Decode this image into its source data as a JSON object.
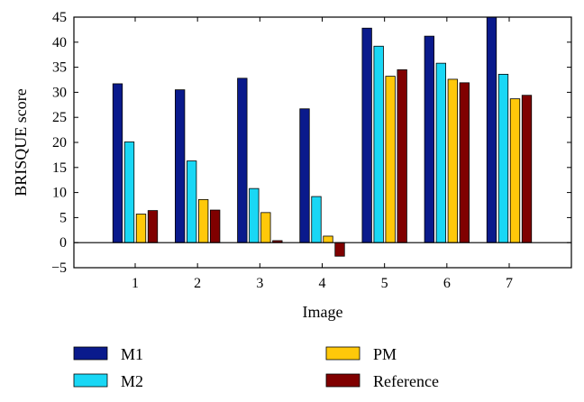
{
  "chart_data": {
    "type": "bar",
    "title": "",
    "xlabel": "Image",
    "ylabel": "BRISQUE score",
    "categories": [
      "1",
      "2",
      "3",
      "4",
      "5",
      "6",
      "7"
    ],
    "ylim": [
      -5,
      45
    ],
    "yticks": [
      -5,
      0,
      5,
      10,
      15,
      20,
      25,
      30,
      35,
      40,
      45
    ],
    "ytick_labels": [
      "−5",
      "0",
      "5",
      "10",
      "15",
      "20",
      "25",
      "30",
      "35",
      "40",
      "45"
    ],
    "grid": false,
    "legend_position": "bottom",
    "series": [
      {
        "name": "M1",
        "color": "#0a1a8c",
        "values": [
          31.7,
          30.5,
          32.8,
          26.7,
          42.8,
          41.2,
          45.0
        ]
      },
      {
        "name": "M2",
        "color": "#19d7f5",
        "values": [
          20.1,
          16.3,
          10.8,
          9.2,
          39.2,
          35.8,
          33.6
        ]
      },
      {
        "name": "PM",
        "color": "#ffc80a",
        "values": [
          5.7,
          8.6,
          6.0,
          1.3,
          33.2,
          32.6,
          28.7
        ]
      },
      {
        "name": "Reference",
        "color": "#800000",
        "values": [
          6.4,
          6.5,
          0.4,
          -2.7,
          34.5,
          31.9,
          29.4
        ]
      }
    ]
  }
}
